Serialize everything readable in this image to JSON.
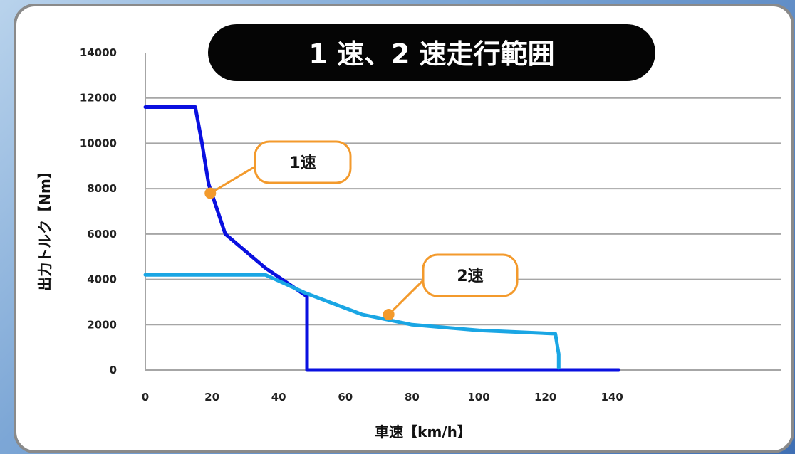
{
  "chart_data": {
    "type": "line",
    "title": "1 速、2 速走行範囲",
    "xlabel": "車速【km/h】",
    "ylabel": "出力トルク【Nm】",
    "xlim": [
      0,
      140
    ],
    "ylim": [
      0,
      14000
    ],
    "xticks": [
      0,
      20,
      40,
      60,
      80,
      100,
      120,
      140
    ],
    "yticks": [
      0,
      2000,
      4000,
      6000,
      8000,
      10000,
      12000,
      14000
    ],
    "grid": true,
    "series": [
      {
        "name": "1速",
        "color": "#0a10e0",
        "x": [
          0,
          15,
          17,
          19,
          24,
          36,
          44,
          48,
          48.5,
          48.5,
          142
        ],
        "y": [
          11600,
          11600,
          10000,
          8200,
          6000,
          4500,
          3700,
          3300,
          3300,
          0,
          0
        ]
      },
      {
        "name": "2速",
        "color": "#1aa6e4",
        "x": [
          0,
          36,
          48,
          65,
          80,
          100,
          123,
          124,
          124
        ],
        "y": [
          4200,
          4200,
          3400,
          2450,
          2000,
          1750,
          1600,
          700,
          100
        ]
      }
    ],
    "annotations": [
      {
        "text": "1速",
        "series": 0,
        "x": 19.5,
        "y": 7800
      },
      {
        "text": "2速",
        "series": 1,
        "x": 73,
        "y": 2450
      }
    ]
  }
}
